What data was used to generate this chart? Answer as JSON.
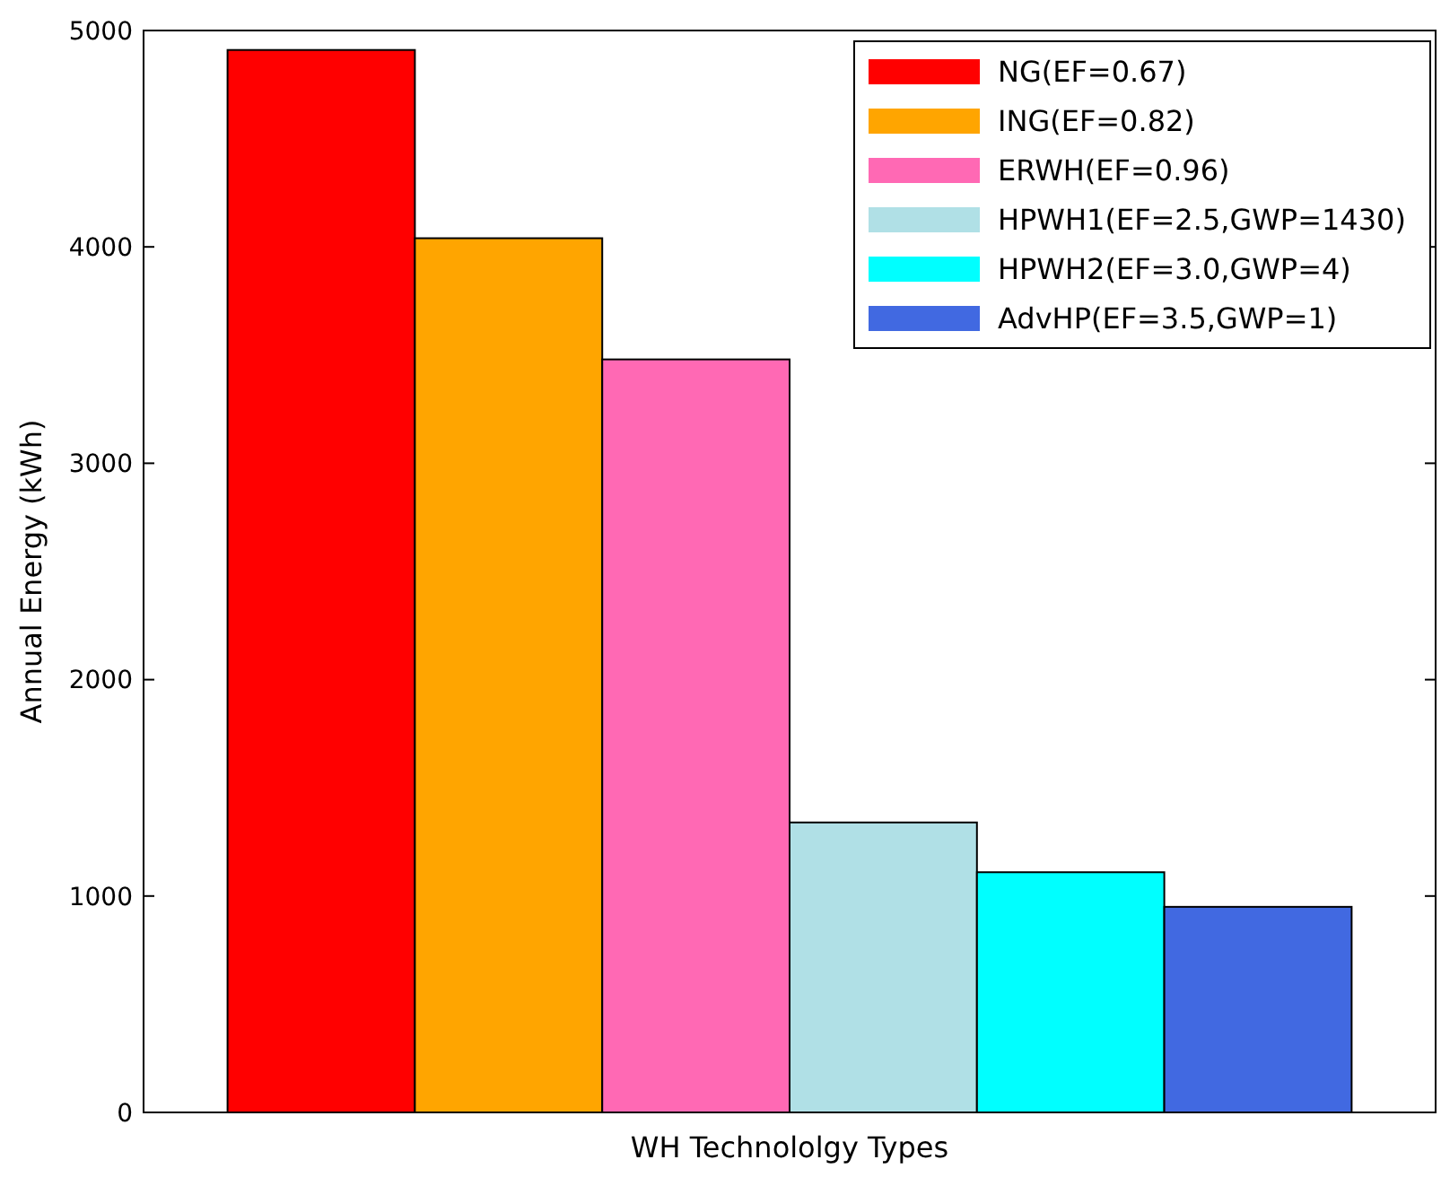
{
  "chart_data": {
    "type": "bar",
    "xlabel": "WH Technololgy Types",
    "ylabel": "Annual Energy (kWh)",
    "categories": [
      null
    ],
    "series": [
      {
        "name": "NG(EF=0.67)",
        "color": "#ff0000",
        "values": [
          4910
        ]
      },
      {
        "name": "ING(EF=0.82)",
        "color": "#ffa500",
        "values": [
          4040
        ]
      },
      {
        "name": "ERWH(EF=0.96)",
        "color": "#ff69b4",
        "values": [
          3480
        ]
      },
      {
        "name": "HPWH1(EF=2.5,GWP=1430)",
        "color": "#b0e0e6",
        "values": [
          1340
        ]
      },
      {
        "name": "HPWH2(EF=3.0,GWP=4)",
        "color": "#00ffff",
        "values": [
          1110
        ]
      },
      {
        "name": "AdvHP(EF=3.5,GWP=1)",
        "color": "#4169e1",
        "values": [
          950
        ]
      }
    ],
    "ylim": [
      0,
      5000
    ],
    "yticks": [
      0,
      1000,
      2000,
      3000,
      4000,
      5000
    ],
    "grid": false,
    "legend": "top right"
  }
}
